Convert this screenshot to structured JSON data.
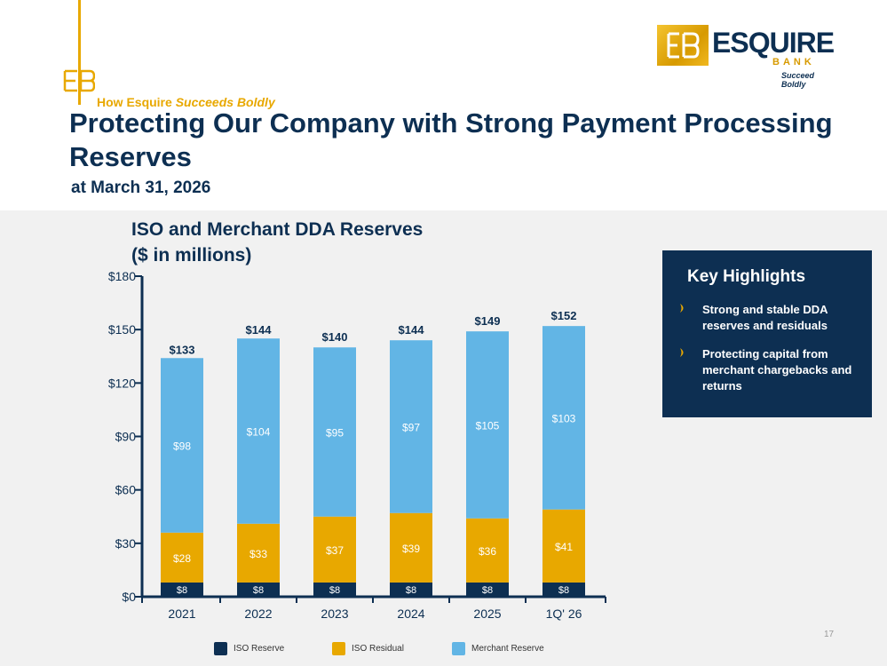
{
  "header": {
    "tagline_prefix": "How Esquire",
    "tagline_italic": "Succeeds Boldly",
    "title": "Protecting Our Company with Strong Payment Processing Reserves",
    "subtitle": "at March 31, 2026",
    "page_number": "17"
  },
  "logo": {
    "name": "ESQUIRE",
    "bank": "BANK",
    "tagline": "Succeed Boldly"
  },
  "highlights": {
    "title": "Key Highlights",
    "items": [
      "Strong and stable DDA reserves and residuals",
      "Protecting capital from merchant chargebacks and returns"
    ]
  },
  "colors": {
    "navy": "#0d2f52",
    "gold": "#e8a800",
    "light_blue": "#62b5e5"
  },
  "chart_data": {
    "type": "bar",
    "stacked": true,
    "title": "ISO and Merchant DDA Reserves ($ in millions)",
    "title_line1": "ISO and Merchant DDA Reserves",
    "title_line2": "($ in millions)",
    "categories": [
      "2021",
      "2022",
      "2023",
      "2024",
      "2025",
      "1Q' 26"
    ],
    "series": [
      {
        "name": "ISO Reserve",
        "color": "#0d2f52",
        "values": [
          8,
          8,
          8,
          8,
          8,
          8
        ],
        "labels": [
          "$8",
          "$8",
          "$8",
          "$8",
          "$8",
          "$8"
        ]
      },
      {
        "name": "ISO Residual",
        "color": "#e8a800",
        "values": [
          28,
          33,
          37,
          39,
          36,
          41
        ],
        "labels": [
          "$28",
          "$33",
          "$37",
          "$39",
          "$36",
          "$41"
        ]
      },
      {
        "name": "Merchant Reserve",
        "color": "#62b5e5",
        "values": [
          98,
          104,
          95,
          97,
          105,
          103
        ],
        "labels": [
          "$98",
          "$104",
          "$95",
          "$97",
          "$105",
          "$103"
        ]
      }
    ],
    "totals": [
      133,
      144,
      140,
      144,
      149,
      152
    ],
    "total_labels": [
      "$133",
      "$144",
      "$140",
      "$144",
      "$149",
      "$152"
    ],
    "yticks": [
      0,
      30,
      60,
      90,
      120,
      150,
      180
    ],
    "ytick_labels": [
      "$0",
      "$30",
      "$60",
      "$90",
      "$120",
      "$150",
      "$180"
    ],
    "ylim": [
      0,
      180
    ],
    "grid": false,
    "legend_position": "bottom"
  }
}
